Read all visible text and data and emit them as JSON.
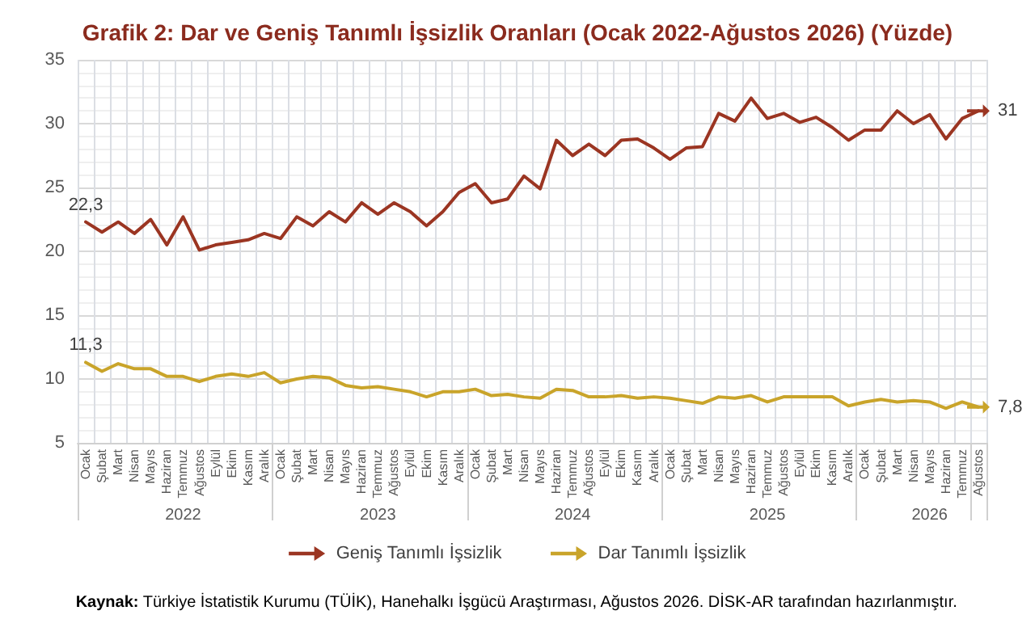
{
  "chart_data": {
    "type": "line",
    "title": "Grafik 2: Dar ve Geniş Tanımlı İşsizlik Oranları (Ocak 2022-Ağustos 2026) (Yüzde)",
    "categories": [
      "Ocak",
      "Şubat",
      "Mart",
      "Nisan",
      "Mayıs",
      "Haziran",
      "Temmuz",
      "Ağustos",
      "Eylül",
      "Ekim",
      "Kasım",
      "Aralık",
      "Ocak",
      "Şubat",
      "Mart",
      "Nisan",
      "Mayıs",
      "Haziran",
      "Temmuz",
      "Ağustos",
      "Eylül",
      "Ekim",
      "Kasım",
      "Aralık",
      "Ocak",
      "Şubat",
      "Mart",
      "Nisan",
      "Mayıs",
      "Haziran",
      "Temmuz",
      "Ağustos",
      "Eylül",
      "Ekim",
      "Kasım",
      "Aralık",
      "Ocak",
      "Şubat",
      "Mart",
      "Nisan",
      "Mayıs",
      "Haziran",
      "Temmuz",
      "Ağustos",
      "Eylül",
      "Ekim",
      "Kasım",
      "Aralık",
      "Ocak",
      "Şubat",
      "Mart",
      "Nisan",
      "Mayıs",
      "Haziran",
      "Temmuz",
      "Ağustos"
    ],
    "series": [
      {
        "name": "Geniş Tanımlı İşsizlik",
        "color": "#9b3522",
        "values": [
          22.3,
          21.5,
          22.3,
          21.4,
          22.5,
          20.5,
          22.7,
          20.1,
          20.5,
          20.7,
          20.9,
          21.4,
          21.0,
          22.7,
          22.0,
          23.1,
          22.3,
          23.8,
          22.9,
          23.8,
          23.1,
          22.0,
          23.1,
          24.6,
          25.3,
          23.8,
          24.1,
          25.9,
          24.9,
          28.7,
          27.5,
          28.4,
          27.5,
          28.7,
          28.8,
          28.1,
          27.2,
          28.1,
          28.2,
          30.8,
          30.2,
          32.0,
          30.4,
          30.8,
          30.1,
          30.5,
          29.7,
          28.7,
          29.5,
          29.5,
          31.0,
          30.0,
          30.7,
          28.8,
          30.4,
          31
        ],
        "value_labels": [
          "22,3",
          null,
          null,
          null,
          null,
          null,
          null,
          null,
          null,
          null,
          null,
          null,
          null,
          null,
          null,
          null,
          null,
          null,
          null,
          null,
          null,
          null,
          null,
          null,
          null,
          null,
          null,
          null,
          null,
          null,
          null,
          null,
          null,
          null,
          null,
          null,
          null,
          null,
          null,
          null,
          null,
          null,
          null,
          null,
          null,
          null,
          null,
          null,
          null,
          null,
          null,
          null,
          null,
          null,
          null,
          "31"
        ]
      },
      {
        "name": "Dar Tanımlı İşsizlik",
        "color": "#c9a42a",
        "values": [
          11.3,
          10.6,
          11.2,
          10.8,
          10.8,
          10.2,
          10.2,
          9.8,
          10.2,
          10.4,
          10.2,
          10.5,
          9.7,
          10.0,
          10.2,
          10.1,
          9.5,
          9.3,
          9.4,
          9.2,
          9.0,
          8.6,
          9.0,
          9.0,
          9.2,
          8.7,
          8.8,
          8.6,
          8.5,
          9.2,
          9.1,
          8.6,
          8.6,
          8.7,
          8.5,
          8.6,
          8.5,
          8.3,
          8.1,
          8.6,
          8.5,
          8.7,
          8.2,
          8.6,
          8.6,
          8.6,
          8.6,
          7.9,
          8.2,
          8.4,
          8.2,
          8.3,
          8.2,
          7.7,
          8.2,
          7.8
        ],
        "value_labels": [
          "11,3",
          null,
          null,
          null,
          null,
          null,
          null,
          null,
          null,
          null,
          null,
          null,
          null,
          null,
          null,
          null,
          null,
          null,
          null,
          null,
          null,
          null,
          null,
          null,
          null,
          null,
          null,
          null,
          null,
          null,
          null,
          null,
          null,
          null,
          null,
          null,
          null,
          null,
          null,
          null,
          null,
          null,
          null,
          null,
          null,
          null,
          null,
          null,
          null,
          null,
          null,
          null,
          null,
          null,
          null,
          "7,8"
        ]
      }
    ],
    "ylim": [
      5,
      35
    ],
    "yticks": [
      5,
      10,
      15,
      20,
      25,
      30,
      35
    ],
    "grid": true,
    "legend": "bottom",
    "annotations": [
      "2022",
      "2023",
      "2024",
      "2025",
      "2026",
      "Kaynak: Türkiye İstatistik Kurumu (TÜİK), Hanehalkı İşgücü Araştırması, Ağustos 2026. DİSK-AR tarafından hazırlanmıştır."
    ]
  }
}
